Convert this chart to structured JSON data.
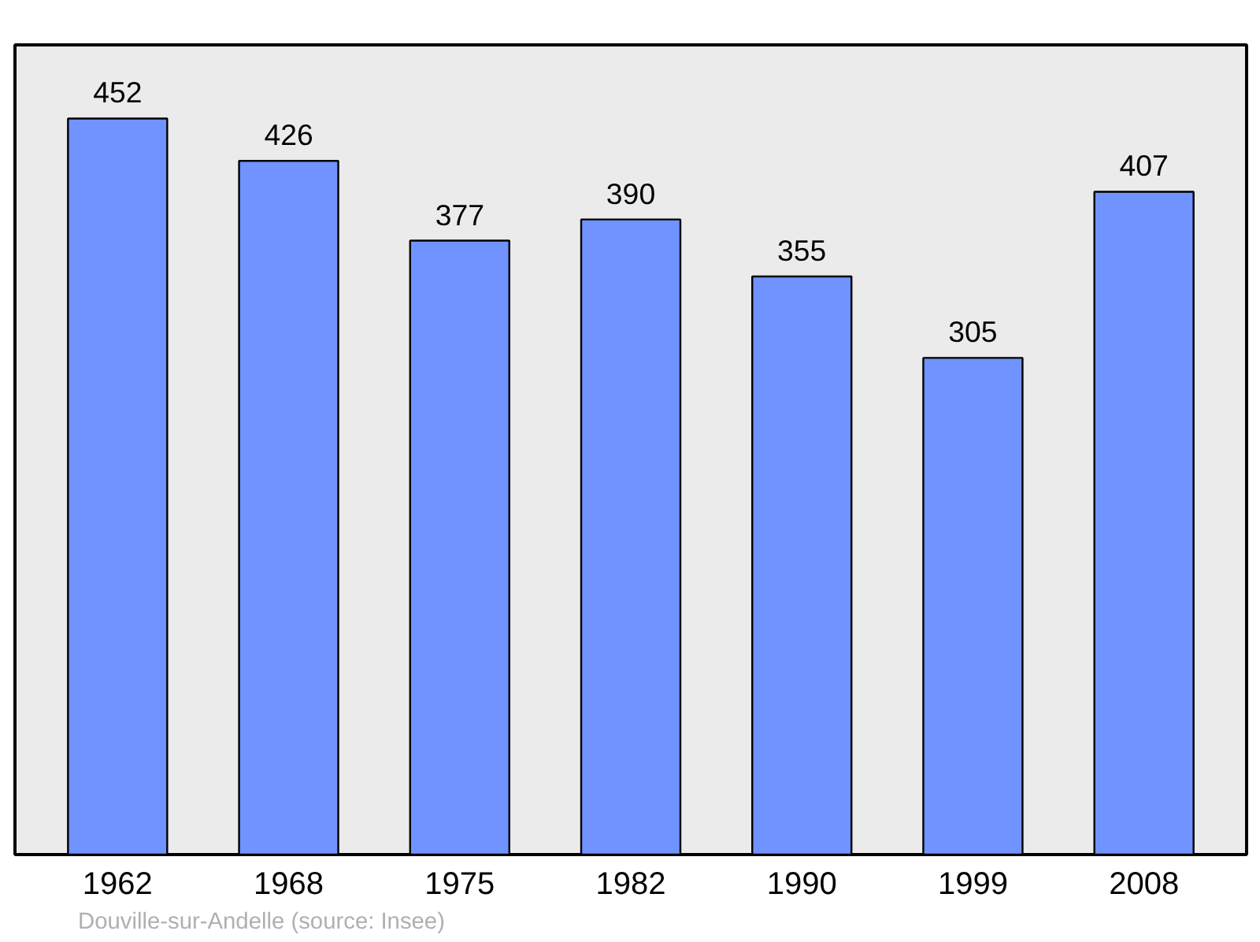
{
  "chart_data": {
    "type": "bar",
    "categories": [
      "1962",
      "1968",
      "1975",
      "1982",
      "1990",
      "1999",
      "2008"
    ],
    "values": [
      452,
      426,
      377,
      390,
      355,
      305,
      407
    ],
    "color": "#7093ff",
    "data_labels": true,
    "tick_labels": "x",
    "annotations": [
      "Douville-sur-Andelle    (source: Insee)"
    ]
  }
}
